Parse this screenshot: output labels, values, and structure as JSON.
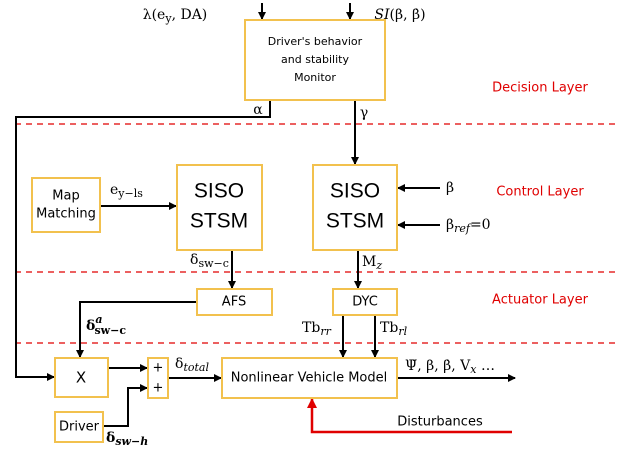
{
  "layers": {
    "decision": "Decision Layer",
    "control": "Control Layer",
    "actuator": "Actuator Layer"
  },
  "blocks": {
    "monitor": [
      "Driver's behavior",
      "and stability",
      "Monitor"
    ],
    "map": [
      "Map",
      "Matching"
    ],
    "stsm_left": [
      "SISO",
      "STSM"
    ],
    "stsm_right": [
      "SISO",
      "STSM"
    ],
    "afs": "AFS",
    "dyc": "DYC",
    "mult": "X",
    "driver": "Driver",
    "sum": [
      "+",
      "+"
    ],
    "nvm": "Nonlinear Vehicle Model"
  },
  "signals": {
    "lambda": [
      "λ(e",
      "y",
      ", DA)"
    ],
    "si": [
      "SI",
      "(β, β̇)"
    ],
    "alpha": "α",
    "gamma": "γ",
    "e_lat": [
      "e",
      "y−ls"
    ],
    "beta": "β",
    "beta_ref": [
      "β",
      "ref",
      "=0"
    ],
    "delta_swc": [
      "δ",
      "sw−c"
    ],
    "mz": [
      "M",
      "z"
    ],
    "delta_a": [
      "δ",
      "a",
      "sw−c"
    ],
    "tb_rr": [
      "Tb",
      "rr"
    ],
    "tb_rl": [
      "Tb",
      "rl"
    ],
    "delta_total": [
      "δ",
      "total"
    ],
    "outputs": [
      "Ψ̇, β, β̇, V",
      "x",
      " …"
    ],
    "disturbances": "Disturbances",
    "delta_swh": [
      "δ",
      "sw−h"
    ]
  }
}
